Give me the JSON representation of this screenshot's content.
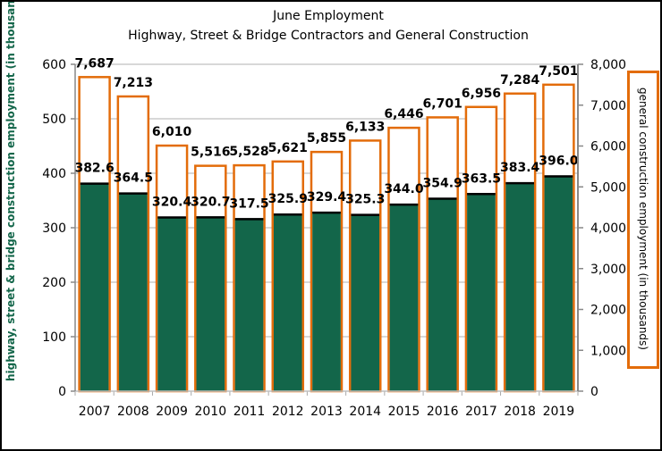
{
  "chart_data": {
    "type": "bar",
    "title": "June Employment",
    "subtitle": "Highway, Street & Bridge Contractors and General Construction",
    "categories": [
      "2007",
      "2008",
      "2009",
      "2010",
      "2011",
      "2012",
      "2013",
      "2014",
      "2015",
      "2016",
      "2017",
      "2018",
      "2019"
    ],
    "series": [
      {
        "name": "highway, street & bridge construction employment (in thousands)",
        "axis": "left",
        "color": "#13664a",
        "values": [
          382.6,
          364.5,
          320.4,
          320.7,
          317.5,
          325.9,
          329.4,
          325.3,
          344.0,
          354.9,
          363.5,
          383.4,
          396.0
        ],
        "labels": [
          "382.6",
          "364.5",
          "320.4",
          "320.7",
          "317.5",
          "325.9",
          "329.4",
          "325.3",
          "344.0",
          "354.9",
          "363.5",
          "383.4",
          "396.0"
        ]
      },
      {
        "name": "general construction employment (in thousands)",
        "axis": "right",
        "color": "#e36c0a",
        "values": [
          7687,
          7213,
          6010,
          5516,
          5528,
          5621,
          5855,
          6133,
          6446,
          6701,
          6956,
          7284,
          7501
        ],
        "labels": [
          "7,687",
          "7,213",
          "6,010",
          "5,516",
          "5,528",
          "5,621",
          "5,855",
          "6,133",
          "6,446",
          "6,701",
          "6,956",
          "7,284",
          "7,501"
        ]
      }
    ],
    "ylabel": "highway, street & bridge construction employment (in thousands)",
    "ylabel_right": "general construction employment (in thousands)",
    "ylim": [
      0,
      600
    ],
    "ylim_right": [
      0,
      8000
    ],
    "yticks": [
      "0",
      "100",
      "200",
      "300",
      "400",
      "500",
      "600"
    ],
    "yticks_right": [
      "0",
      "1,000",
      "2,000",
      "3,000",
      "4,000",
      "5,000",
      "6,000",
      "7,000",
      "8,000"
    ],
    "grid": true,
    "legend": "none"
  }
}
